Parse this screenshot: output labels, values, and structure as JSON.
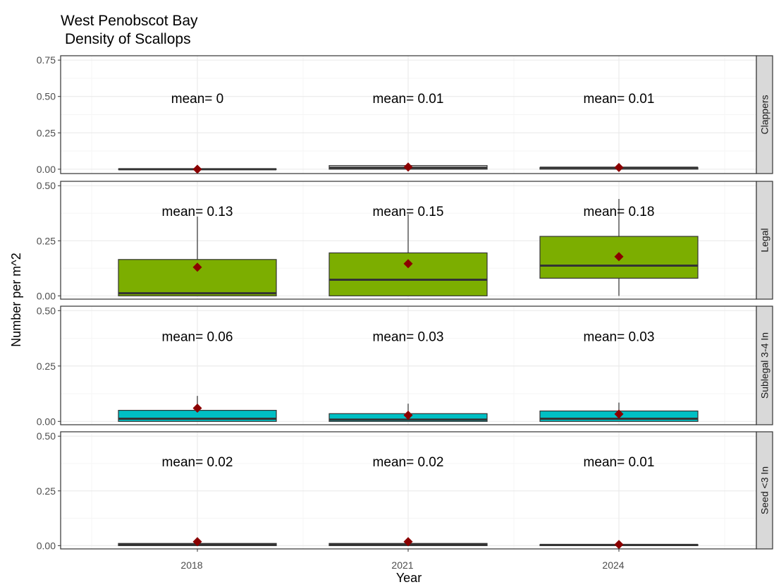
{
  "chart_data": {
    "type": "boxplot",
    "title_lines": [
      "West Penobscot Bay",
      "Density of Scallops"
    ],
    "xlabel": "Year",
    "ylabel": "Number per m^2",
    "categories": [
      "2018",
      "2021",
      "2024"
    ],
    "grid": true,
    "facets": [
      {
        "label": "Clappers",
        "ylim": [
          -0.03,
          0.78
        ],
        "yticks": [
          "0.00",
          "0.25",
          "0.50",
          "0.75"
        ],
        "ytick_values": [
          0,
          0.25,
          0.5,
          0.75
        ],
        "fill": "#f2f2f2",
        "annotation_y": 0.49,
        "boxes": [
          {
            "year": "2018",
            "q1": 0.0,
            "median": 0.0,
            "q3": 0.0,
            "whisker_low": 0.0,
            "whisker_high": 0.0,
            "mean": 0.0,
            "mean_label": "mean= 0"
          },
          {
            "year": "2021",
            "q1": 0.0,
            "median": 0.01,
            "q3": 0.025,
            "whisker_low": 0.0,
            "whisker_high": 0.025,
            "mean": 0.015,
            "mean_label": "mean= 0.01"
          },
          {
            "year": "2024",
            "q1": 0.0,
            "median": 0.01,
            "q3": 0.012,
            "whisker_low": 0.0,
            "whisker_high": 0.012,
            "mean": 0.012,
            "mean_label": "mean= 0.01"
          }
        ]
      },
      {
        "label": "Legal",
        "ylim": [
          -0.015,
          0.52
        ],
        "yticks": [
          "0.00",
          "0.25",
          "0.50"
        ],
        "ytick_values": [
          0,
          0.25,
          0.5
        ],
        "fill": "#7cae00",
        "annotation_y": 0.385,
        "boxes": [
          {
            "year": "2018",
            "q1": 0.0,
            "median": 0.012,
            "q3": 0.165,
            "whisker_low": 0.0,
            "whisker_high": 0.36,
            "mean": 0.13,
            "mean_label": "mean= 0.13"
          },
          {
            "year": "2021",
            "q1": 0.0,
            "median": 0.073,
            "q3": 0.195,
            "whisker_low": 0.0,
            "whisker_high": 0.37,
            "mean": 0.146,
            "mean_label": "mean= 0.15"
          },
          {
            "year": "2024",
            "q1": 0.08,
            "median": 0.137,
            "q3": 0.27,
            "whisker_low": 0.0,
            "whisker_high": 0.44,
            "mean": 0.178,
            "mean_label": "mean= 0.18"
          }
        ]
      },
      {
        "label": "Sublegal 3-4 In",
        "ylim": [
          -0.015,
          0.52
        ],
        "yticks": [
          "0.00",
          "0.25",
          "0.50"
        ],
        "ytick_values": [
          0,
          0.25,
          0.5
        ],
        "fill": "#00bfc4",
        "annotation_y": 0.385,
        "boxes": [
          {
            "year": "2018",
            "q1": 0.0,
            "median": 0.012,
            "q3": 0.05,
            "whisker_low": 0.0,
            "whisker_high": 0.115,
            "mean": 0.06,
            "mean_label": "mean= 0.06"
          },
          {
            "year": "2021",
            "q1": 0.0,
            "median": 0.008,
            "q3": 0.035,
            "whisker_low": 0.0,
            "whisker_high": 0.08,
            "mean": 0.028,
            "mean_label": "mean= 0.03"
          },
          {
            "year": "2024",
            "q1": 0.0,
            "median": 0.012,
            "q3": 0.047,
            "whisker_low": 0.0,
            "whisker_high": 0.085,
            "mean": 0.033,
            "mean_label": "mean= 0.03"
          }
        ]
      },
      {
        "label": "Seed <3 In",
        "ylim": [
          -0.015,
          0.52
        ],
        "yticks": [
          "0.00",
          "0.25",
          "0.50"
        ],
        "ytick_values": [
          0,
          0.25,
          0.5
        ],
        "fill": "#c77cff",
        "annotation_y": 0.385,
        "boxes": [
          {
            "year": "2018",
            "q1": 0.0,
            "median": 0.005,
            "q3": 0.01,
            "whisker_low": 0.0,
            "whisker_high": 0.012,
            "mean": 0.018,
            "mean_label": "mean= 0.02"
          },
          {
            "year": "2021",
            "q1": 0.0,
            "median": 0.005,
            "q3": 0.01,
            "whisker_low": 0.0,
            "whisker_high": 0.012,
            "mean": 0.018,
            "mean_label": "mean= 0.02"
          },
          {
            "year": "2024",
            "q1": 0.0,
            "median": 0.003,
            "q3": 0.005,
            "whisker_low": 0.0,
            "whisker_high": 0.005,
            "mean": 0.005,
            "mean_label": "mean= 0.01"
          }
        ]
      }
    ],
    "colors": {
      "mean_point": "#8b0000",
      "box_line": "#333333",
      "panel_border": "#333333",
      "grid_major": "#ebebeb",
      "grid_minor": "#f5f5f5",
      "strip_bg": "#d9d9d9"
    }
  }
}
